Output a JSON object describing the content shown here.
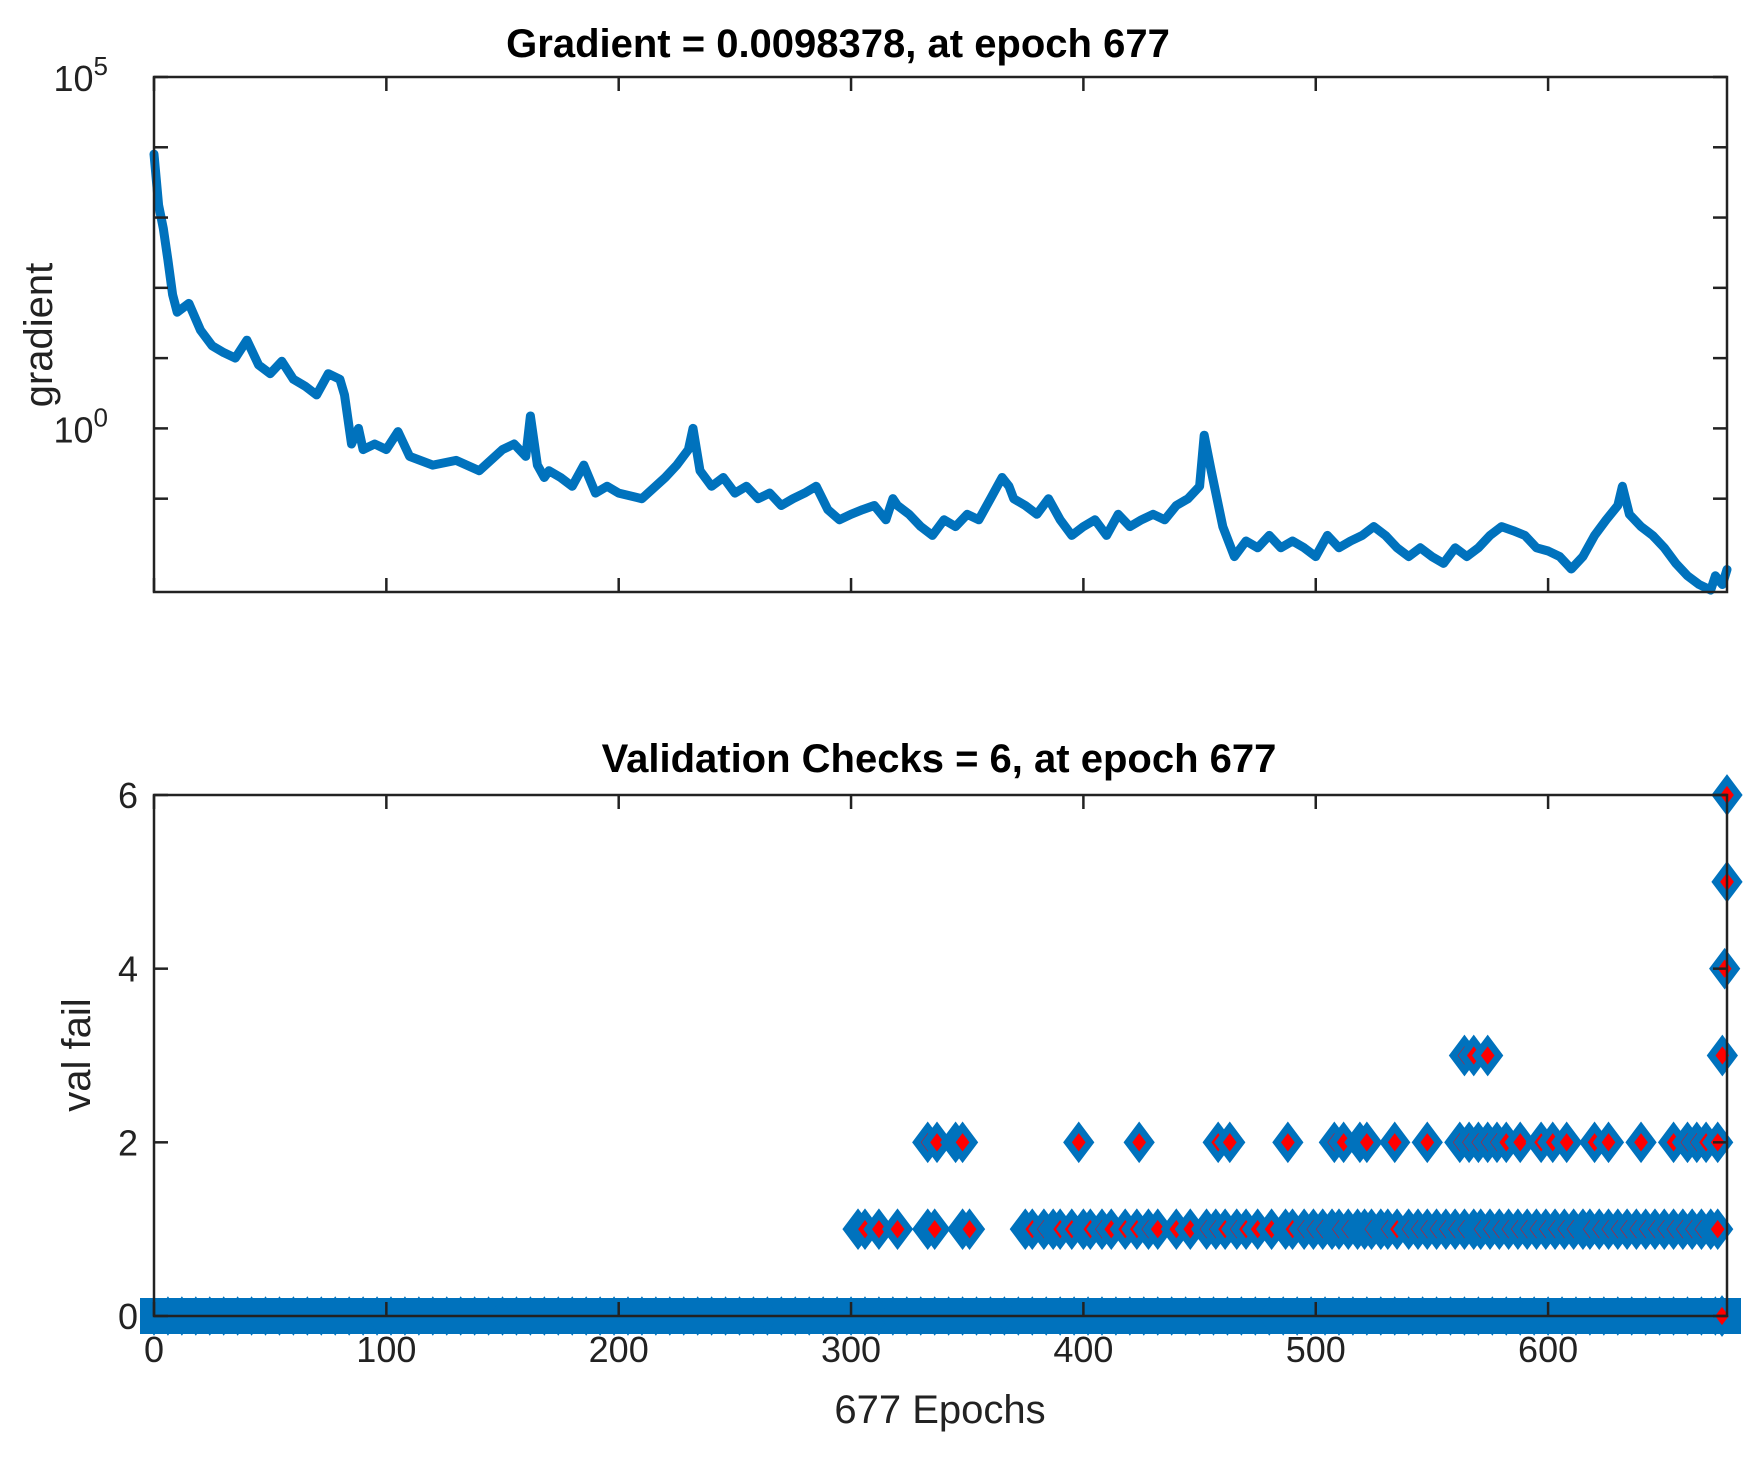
{
  "chart_data": [
    {
      "type": "line",
      "title": "Gradient = 0.0098378, at epoch 677",
      "xlabel": "",
      "ylabel": "gradient",
      "yscale": "log",
      "xlim": [
        0,
        677
      ],
      "ylim": [
        0.0047,
        100000
      ],
      "ytick_labels": [
        {
          "value": 1,
          "base": "10",
          "exp": "0"
        },
        {
          "value": 100000,
          "base": "10",
          "exp": "5"
        }
      ],
      "minor_ticks_y": [
        0.1,
        10,
        100,
        1000,
        10000
      ],
      "x_ticks": [
        0,
        100,
        200,
        300,
        400,
        500,
        600
      ],
      "color": "#0072BD",
      "final_value": 0.0098378,
      "final_epoch": 677,
      "series": [
        {
          "name": "gradient",
          "x": [
            0,
            2,
            4,
            6,
            8,
            10,
            15,
            20,
            25,
            30,
            35,
            40,
            45,
            50,
            55,
            60,
            65,
            70,
            75,
            80,
            82,
            85,
            88,
            90,
            95,
            100,
            105,
            110,
            120,
            130,
            140,
            150,
            155,
            160,
            162,
            165,
            168,
            170,
            175,
            180,
            185,
            190,
            195,
            200,
            210,
            220,
            225,
            230,
            232,
            235,
            240,
            245,
            250,
            255,
            260,
            265,
            270,
            275,
            280,
            285,
            290,
            295,
            300,
            305,
            310,
            315,
            318,
            320,
            325,
            330,
            335,
            340,
            345,
            350,
            355,
            360,
            365,
            368,
            370,
            375,
            380,
            385,
            390,
            395,
            400,
            405,
            410,
            415,
            420,
            425,
            430,
            435,
            440,
            445,
            450,
            452,
            455,
            460,
            465,
            470,
            475,
            480,
            485,
            490,
            495,
            500,
            505,
            510,
            515,
            520,
            525,
            530,
            535,
            540,
            545,
            550,
            555,
            560,
            565,
            570,
            575,
            580,
            585,
            590,
            595,
            600,
            605,
            610,
            615,
            620,
            625,
            630,
            632,
            635,
            640,
            645,
            650,
            655,
            660,
            665,
            670,
            672,
            675,
            677
          ],
          "y": [
            8000,
            1500,
            700,
            250,
            80,
            45,
            60,
            25,
            15,
            12,
            10,
            18,
            8,
            6,
            9,
            5,
            4,
            3,
            6,
            5,
            3,
            0.6,
            1.0,
            0.5,
            0.6,
            0.5,
            0.9,
            0.4,
            0.3,
            0.35,
            0.25,
            0.5,
            0.6,
            0.4,
            1.5,
            0.3,
            0.2,
            0.25,
            0.2,
            0.15,
            0.3,
            0.12,
            0.15,
            0.12,
            0.1,
            0.2,
            0.3,
            0.5,
            1.0,
            0.25,
            0.15,
            0.2,
            0.12,
            0.15,
            0.1,
            0.12,
            0.08,
            0.1,
            0.12,
            0.15,
            0.07,
            0.05,
            0.06,
            0.07,
            0.08,
            0.05,
            0.1,
            0.08,
            0.06,
            0.04,
            0.03,
            0.05,
            0.04,
            0.06,
            0.05,
            0.1,
            0.2,
            0.15,
            0.1,
            0.08,
            0.06,
            0.1,
            0.05,
            0.03,
            0.04,
            0.05,
            0.03,
            0.06,
            0.04,
            0.05,
            0.06,
            0.05,
            0.08,
            0.1,
            0.15,
            0.8,
            0.25,
            0.04,
            0.015,
            0.025,
            0.02,
            0.03,
            0.02,
            0.025,
            0.02,
            0.015,
            0.03,
            0.02,
            0.025,
            0.03,
            0.04,
            0.03,
            0.02,
            0.015,
            0.02,
            0.015,
            0.012,
            0.02,
            0.015,
            0.02,
            0.03,
            0.04,
            0.035,
            0.03,
            0.02,
            0.018,
            0.015,
            0.01,
            0.015,
            0.03,
            0.05,
            0.08,
            0.15,
            0.06,
            0.04,
            0.03,
            0.02,
            0.012,
            0.008,
            0.006,
            0.005,
            0.008,
            0.006,
            0.0098378
          ]
        }
      ]
    },
    {
      "type": "scatter",
      "title": "Validation Checks = 6, at epoch 677",
      "xlabel": "677 Epochs",
      "ylabel": "val fail",
      "xlim": [
        0,
        677
      ],
      "ylim": [
        0,
        6
      ],
      "x_ticks": [
        0,
        100,
        200,
        300,
        400,
        500,
        600
      ],
      "y_ticks": [
        0,
        2,
        4,
        6
      ],
      "marker": "diamond",
      "marker_edge_color": "#0072BD",
      "marker_face_color": "#FF0000",
      "final_value": 6,
      "final_epoch": 677,
      "series": [
        {
          "name": "val fail = 0 (epochs 0-677)",
          "y": 0,
          "x_range": [
            0,
            677
          ]
        },
        {
          "name": "val fail = 1",
          "y": 1,
          "x": [
            303,
            306,
            312,
            320,
            333,
            336,
            348,
            351,
            375,
            378,
            383,
            387,
            390,
            395,
            400,
            403,
            408,
            412,
            418,
            423,
            428,
            432,
            440,
            446,
            453,
            457,
            461,
            466,
            470,
            475,
            481,
            487,
            490,
            495,
            499,
            503,
            507,
            510,
            514,
            518,
            521,
            524,
            528,
            531,
            535,
            540,
            544,
            548,
            552,
            556,
            560,
            564,
            568,
            571,
            575,
            579,
            583,
            587,
            591,
            595,
            599,
            603,
            607,
            611,
            615,
            618,
            622,
            626,
            630,
            634,
            638,
            642,
            646,
            650,
            654,
            658,
            662,
            666,
            670,
            673
          ]
        },
        {
          "name": "val fail = 2",
          "y": 2,
          "x": [
            333,
            337,
            345,
            348,
            398,
            424,
            458,
            463,
            488,
            508,
            512,
            519,
            522,
            534,
            548,
            562,
            566,
            570,
            574,
            578,
            582,
            588,
            597,
            602,
            608,
            620,
            626,
            640,
            654,
            660,
            664,
            668,
            673
          ]
        },
        {
          "name": "val fail = 3",
          "y": 3,
          "x": [
            564,
            568,
            574,
            675
          ]
        },
        {
          "name": "val fail = 4",
          "y": 4,
          "x": [
            676
          ]
        },
        {
          "name": "val fail = 5",
          "y": 5,
          "x": [
            677
          ]
        },
        {
          "name": "val fail = 6",
          "y": 6,
          "x": [
            677
          ]
        }
      ]
    }
  ]
}
